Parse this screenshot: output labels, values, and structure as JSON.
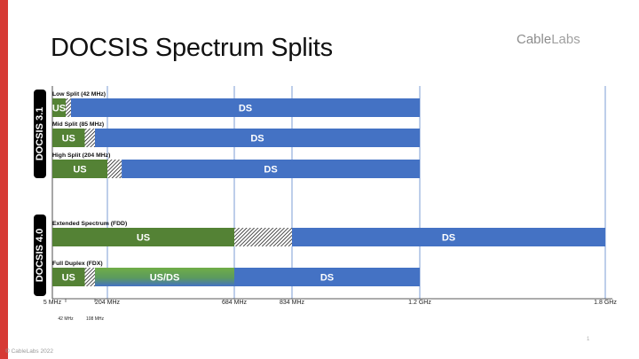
{
  "slide": {
    "title": "DOCSIS Spectrum Splits",
    "logo": {
      "bold": "Cable",
      "light": "Labs"
    },
    "footer": "© CableLabs 2022",
    "page_number": "1"
  },
  "colors": {
    "us": "#548235",
    "ds": "#4472c4",
    "usds_top": "#70ad47",
    "usds_bottom": "#4472c4",
    "gap_hatch": "#000000",
    "accent": "#d63a34",
    "group_label_bg": "#000000"
  },
  "chart_data": {
    "type": "bar",
    "orientation": "horizontal-stacked-ranges",
    "x_unit": "MHz",
    "xlim": [
      5,
      1800
    ],
    "axis_ticks": [
      {
        "value": 5,
        "label": "5 MHz",
        "level": "major"
      },
      {
        "value": 42,
        "label": "42 MHz",
        "level": "minor"
      },
      {
        "value": 108,
        "label": "108 MHz",
        "level": "minor"
      },
      {
        "value": 204,
        "label": "204 MHz",
        "level": "major"
      },
      {
        "value": 684,
        "label": "684 MHz",
        "level": "major"
      },
      {
        "value": 834,
        "label": "834 MHz",
        "level": "major"
      },
      {
        "value": 1200,
        "label": "1.2 GHz",
        "level": "major"
      },
      {
        "value": 1800,
        "label": "1.8 GHz",
        "level": "major"
      }
    ],
    "gridlines": [
      204,
      684,
      834,
      1200,
      1800
    ],
    "groups": [
      {
        "label": "DOCSIS 3.1",
        "rows": [
          {
            "label": "Low Split (42 MHz)",
            "segments": [
              {
                "kind": "us",
                "label": "US",
                "start": 5,
                "end": 42
              },
              {
                "kind": "gap",
                "label": "",
                "start": 42,
                "end": 54
              },
              {
                "kind": "ds",
                "label": "DS",
                "start": 54,
                "end": 1200
              }
            ]
          },
          {
            "label": "Mid Split (85 MHz)",
            "segments": [
              {
                "kind": "us",
                "label": "US",
                "start": 5,
                "end": 85
              },
              {
                "kind": "gap",
                "label": "",
                "start": 85,
                "end": 108
              },
              {
                "kind": "ds",
                "label": "DS",
                "start": 108,
                "end": 1200
              }
            ]
          },
          {
            "label": "High Split (204 MHz)",
            "segments": [
              {
                "kind": "us",
                "label": "US",
                "start": 5,
                "end": 204
              },
              {
                "kind": "gap",
                "label": "",
                "start": 204,
                "end": 258
              },
              {
                "kind": "ds",
                "label": "DS",
                "start": 258,
                "end": 1200
              }
            ]
          }
        ]
      },
      {
        "label": "DOCSIS 4.0",
        "rows": [
          {
            "label": "Extended Spectrum (FDD)",
            "segments": [
              {
                "kind": "us",
                "label": "US",
                "start": 5,
                "end": 684
              },
              {
                "kind": "gap",
                "label": "",
                "start": 684,
                "end": 834
              },
              {
                "kind": "ds",
                "label": "DS",
                "start": 834,
                "end": 1800
              }
            ]
          },
          {
            "label": "Full Duplex (FDX)",
            "segments": [
              {
                "kind": "us",
                "label": "US",
                "start": 5,
                "end": 85
              },
              {
                "kind": "gap",
                "label": "",
                "start": 85,
                "end": 108
              },
              {
                "kind": "usds",
                "label": "US/DS",
                "start": 108,
                "end": 684
              },
              {
                "kind": "ds",
                "label": "DS",
                "start": 684,
                "end": 1200
              }
            ]
          }
        ]
      }
    ]
  }
}
